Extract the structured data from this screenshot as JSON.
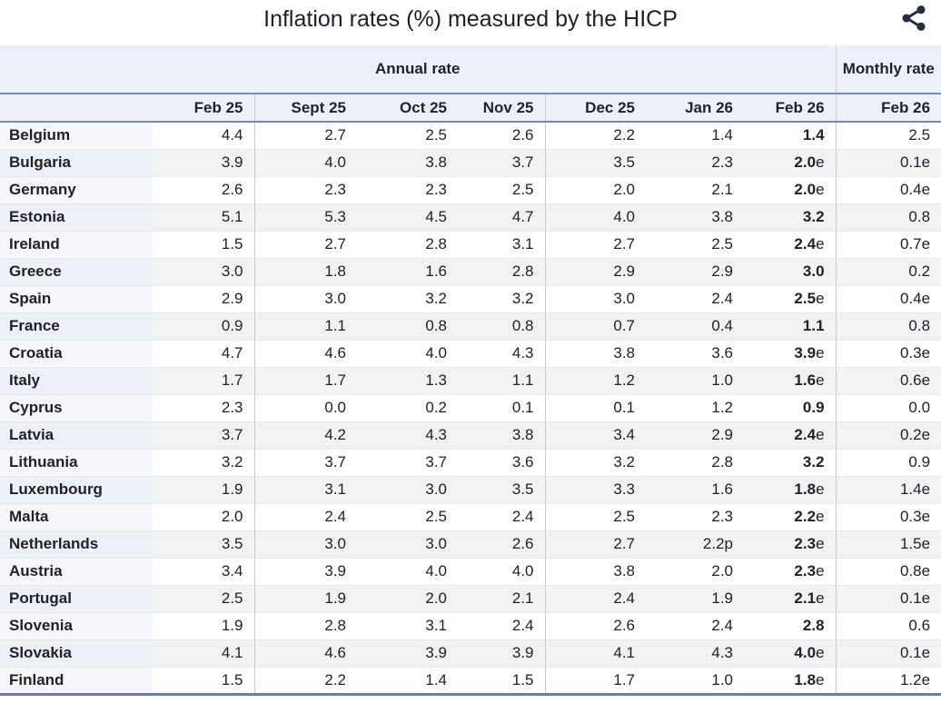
{
  "title": "Inflation rates (%) measured by the HICP",
  "share_button": {
    "icon": "share-icon"
  },
  "chart_data": {
    "type": "table",
    "title": "Inflation rates (%) measured by the HICP",
    "row_header": "",
    "column_groups": [
      {
        "label": "Annual rate",
        "columns": [
          "Feb 25",
          "Sept 25",
          "Oct 25",
          "Nov 25",
          "Dec 25",
          "Jan 26",
          "Feb 26"
        ]
      },
      {
        "label": "Monthly rate",
        "columns": [
          "Feb 26"
        ]
      }
    ],
    "bold_value_index": 6,
    "rows": [
      {
        "country": "Belgium",
        "values": [
          "4.4",
          "2.7",
          "2.5",
          "2.6",
          "2.2",
          "1.4",
          "1.4",
          "2.5"
        ]
      },
      {
        "country": "Bulgaria",
        "values": [
          "3.9",
          "4.0",
          "3.8",
          "3.7",
          "3.5",
          "2.3",
          "2.0e",
          "0.1e"
        ]
      },
      {
        "country": "Germany",
        "values": [
          "2.6",
          "2.3",
          "2.3",
          "2.5",
          "2.0",
          "2.1",
          "2.0e",
          "0.4e"
        ]
      },
      {
        "country": "Estonia",
        "values": [
          "5.1",
          "5.3",
          "4.5",
          "4.7",
          "4.0",
          "3.8",
          "3.2",
          "0.8"
        ]
      },
      {
        "country": "Ireland",
        "values": [
          "1.5",
          "2.7",
          "2.8",
          "3.1",
          "2.7",
          "2.5",
          "2.4e",
          "0.7e"
        ]
      },
      {
        "country": "Greece",
        "values": [
          "3.0",
          "1.8",
          "1.6",
          "2.8",
          "2.9",
          "2.9",
          "3.0",
          "0.2"
        ]
      },
      {
        "country": "Spain",
        "values": [
          "2.9",
          "3.0",
          "3.2",
          "3.2",
          "3.0",
          "2.4",
          "2.5e",
          "0.4e"
        ]
      },
      {
        "country": "France",
        "values": [
          "0.9",
          "1.1",
          "0.8",
          "0.8",
          "0.7",
          "0.4",
          "1.1",
          "0.8"
        ]
      },
      {
        "country": "Croatia",
        "values": [
          "4.7",
          "4.6",
          "4.0",
          "4.3",
          "3.8",
          "3.6",
          "3.9e",
          "0.3e"
        ]
      },
      {
        "country": "Italy",
        "values": [
          "1.7",
          "1.7",
          "1.3",
          "1.1",
          "1.2",
          "1.0",
          "1.6e",
          "0.6e"
        ]
      },
      {
        "country": "Cyprus",
        "values": [
          "2.3",
          "0.0",
          "0.2",
          "0.1",
          "0.1",
          "1.2",
          "0.9",
          "0.0"
        ]
      },
      {
        "country": "Latvia",
        "values": [
          "3.7",
          "4.2",
          "4.3",
          "3.8",
          "3.4",
          "2.9",
          "2.4e",
          "0.2e"
        ]
      },
      {
        "country": "Lithuania",
        "values": [
          "3.2",
          "3.7",
          "3.7",
          "3.6",
          "3.2",
          "2.8",
          "3.2",
          "0.9"
        ]
      },
      {
        "country": "Luxembourg",
        "values": [
          "1.9",
          "3.1",
          "3.0",
          "3.5",
          "3.3",
          "1.6",
          "1.8e",
          "1.4e"
        ]
      },
      {
        "country": "Malta",
        "values": [
          "2.0",
          "2.4",
          "2.5",
          "2.4",
          "2.5",
          "2.3",
          "2.2e",
          "0.3e"
        ]
      },
      {
        "country": "Netherlands",
        "values": [
          "3.5",
          "3.0",
          "3.0",
          "2.6",
          "2.7",
          "2.2p",
          "2.3e",
          "1.5e"
        ]
      },
      {
        "country": "Austria",
        "values": [
          "3.4",
          "3.9",
          "4.0",
          "4.0",
          "3.8",
          "2.0",
          "2.3e",
          "0.8e"
        ]
      },
      {
        "country": "Portugal",
        "values": [
          "2.5",
          "1.9",
          "2.0",
          "2.1",
          "2.4",
          "1.9",
          "2.1e",
          "0.1e"
        ]
      },
      {
        "country": "Slovenia",
        "values": [
          "1.9",
          "2.8",
          "3.1",
          "2.4",
          "2.6",
          "2.4",
          "2.8",
          "0.6"
        ]
      },
      {
        "country": "Slovakia",
        "values": [
          "4.1",
          "4.6",
          "3.9",
          "3.9",
          "4.1",
          "4.3",
          "4.0e",
          "0.1e"
        ]
      },
      {
        "country": "Finland",
        "values": [
          "1.5",
          "2.2",
          "1.4",
          "1.5",
          "1.7",
          "1.0",
          "1.8e",
          "1.2e"
        ]
      }
    ]
  },
  "colors": {
    "header_bg": "#edf0f8",
    "header_rule_blue": "#6d8ad5",
    "bottom_rule_blue": "#5e7ecd",
    "group_divider": "#c9cbcf",
    "row_stripe": "#f1f2f3",
    "country_col_bg": "#f5f7fd",
    "country_col_bg_alt": "#eef0f7",
    "text": "#202227",
    "share_icon": "#262c39"
  }
}
